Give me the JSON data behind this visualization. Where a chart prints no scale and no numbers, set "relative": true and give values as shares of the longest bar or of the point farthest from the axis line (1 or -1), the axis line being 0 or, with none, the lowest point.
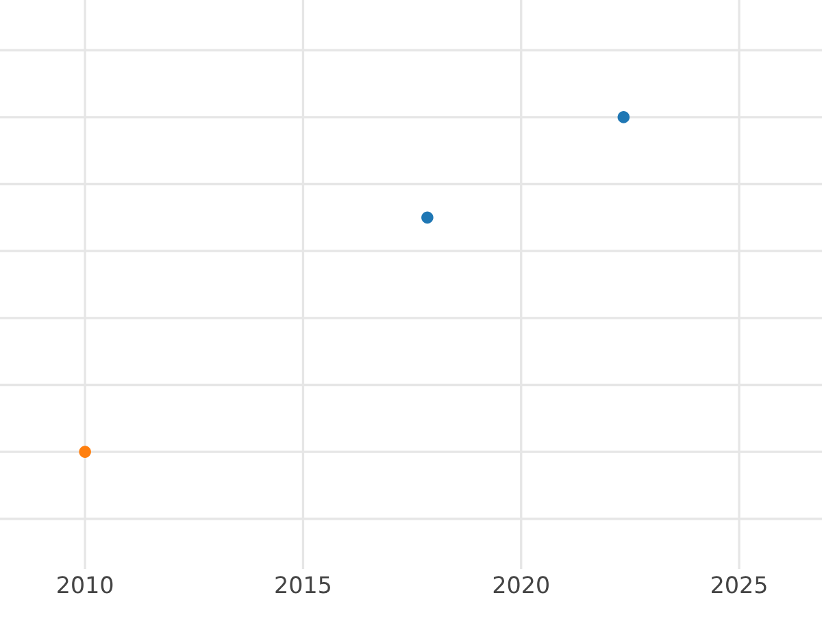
{
  "chart_data": {
    "type": "scatter",
    "relative": true,
    "series": [
      {
        "x": [
          2017.85,
          2022.35
        ],
        "values": [
          0.7,
          1
        ],
        "color": "#1f77b4"
      },
      {
        "x": [
          2010.0
        ],
        "values": [
          0
        ],
        "color": "#ff7f0e"
      }
    ],
    "xlim": [
      2008.05,
      2026.9
    ],
    "xticks": [
      2010,
      2015,
      2020,
      2025
    ],
    "grid": true,
    "marker": "circle",
    "tick_labels": "x"
  }
}
